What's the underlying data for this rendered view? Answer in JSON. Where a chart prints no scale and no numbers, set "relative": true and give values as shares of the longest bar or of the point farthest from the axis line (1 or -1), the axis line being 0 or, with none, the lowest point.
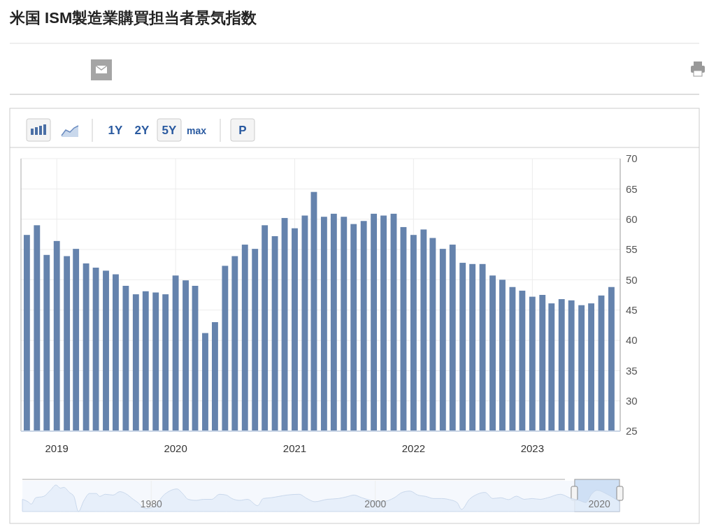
{
  "chart_data": [
    {
      "type": "bar",
      "title": "米国 ISM製造業購買担当者景気指数",
      "annotations": [
        "1Y",
        "2Y",
        "5Y",
        "max",
        "P"
      ],
      "x": [
        "2018-10",
        "2018-11",
        "2018-12",
        "2019-01",
        "2019-02",
        "2019-03",
        "2019-04",
        "2019-05",
        "2019-06",
        "2019-07",
        "2019-08",
        "2019-09",
        "2019-10",
        "2019-11",
        "2019-12",
        "2020-01",
        "2020-02",
        "2020-03",
        "2020-04",
        "2020-05",
        "2020-06",
        "2020-07",
        "2020-08",
        "2020-09",
        "2020-10",
        "2020-11",
        "2020-12",
        "2021-01",
        "2021-02",
        "2021-03",
        "2021-04",
        "2021-05",
        "2021-06",
        "2021-07",
        "2021-08",
        "2021-09",
        "2021-10",
        "2021-11",
        "2021-12",
        "2022-01",
        "2022-02",
        "2022-03",
        "2022-04",
        "2022-05",
        "2022-06",
        "2022-07",
        "2022-08",
        "2022-09",
        "2022-10",
        "2022-11",
        "2022-12",
        "2023-01",
        "2023-02",
        "2023-03",
        "2023-04",
        "2023-05",
        "2023-06",
        "2023-07",
        "2023-08",
        "2023-09"
      ],
      "values": [
        57.4,
        59.0,
        54.1,
        56.4,
        53.9,
        55.1,
        52.7,
        52.0,
        51.5,
        50.9,
        49.0,
        47.6,
        48.1,
        47.9,
        47.6,
        50.7,
        49.9,
        49.0,
        41.2,
        43.0,
        52.3,
        53.9,
        55.8,
        55.1,
        59.0,
        57.2,
        60.2,
        58.5,
        60.6,
        64.5,
        60.4,
        60.9,
        60.4,
        59.2,
        59.7,
        60.9,
        60.6,
        60.9,
        58.7,
        57.4,
        58.3,
        56.9,
        55.1,
        55.8,
        52.8,
        52.6,
        52.6,
        50.7,
        50.0,
        48.8,
        48.2,
        47.2,
        47.5,
        46.1,
        46.8,
        46.6,
        45.8,
        46.1,
        47.4,
        48.8
      ],
      "color": "#6583ad",
      "xlim": [
        "2018-09-13",
        "2023-09-28"
      ],
      "xticks": [
        "2019",
        "2020",
        "2021",
        "2022",
        "2023"
      ],
      "ylim": [
        25,
        70
      ],
      "yticks": [
        25,
        30,
        35,
        40,
        45,
        50,
        55,
        60,
        65,
        70
      ],
      "grid": true
    },
    {
      "type": "area",
      "relative": true,
      "tick_labels": "x",
      "grid": "x",
      "color": "#c9d8ec",
      "bands": [
        {
          "axis": "x",
          "from": 2017.8,
          "to": 2021.8,
          "color": "#cfe0f5"
        }
      ],
      "xlim": [
        1968.5,
        2021.8
      ],
      "xticks": [
        1980,
        2000,
        2020
      ],
      "x": [
        1968.5,
        1969.0,
        1969.3,
        1969.7,
        1970.4,
        1971.0,
        1971.5,
        1971.9,
        1972.2,
        1972.7,
        1973.1,
        1973.5,
        1974.0,
        1974.5,
        1975.1,
        1975.4,
        1975.9,
        1976.6,
        1977.2,
        1977.7,
        1978.4,
        1978.8,
        1979.5,
        1980.2,
        1981.2,
        1982.3,
        1982.8,
        1983.3,
        1984.0,
        1984.7,
        1985.4,
        1986.1,
        1986.7,
        1987.2,
        1987.9,
        1988.6,
        1989.5,
        1990.0,
        1990.7,
        1991.4,
        1992.1,
        1993.2,
        1993.9,
        1994.6,
        1995.7,
        1996.7,
        1997.4,
        1998.1,
        1998.8,
        1999.6,
        2000.6,
        2001.7,
        2002.4,
        2003.1,
        2003.8,
        2004.5,
        2005.2,
        2005.9,
        2006.6,
        2007.3,
        2007.7,
        2008.4,
        2009.1,
        2009.8,
        2010.5,
        2011.2,
        2011.9,
        2012.6,
        2013.3,
        2014.0,
        2014.7,
        2015.4,
        2016.5,
        2017.5,
        2018.2,
        2018.8,
        2019.3,
        2019.8,
        2020.7,
        2021.8
      ],
      "values": [
        0.46,
        0.37,
        0.28,
        0.52,
        0.57,
        0.8,
        1.0,
        0.88,
        0.91,
        0.72,
        0.57,
        0,
        0.42,
        0.68,
        0.68,
        0.57,
        0.65,
        0.62,
        0.75,
        0.68,
        0.46,
        0.34,
        0.11,
        0.18,
        0.65,
        0.85,
        0.68,
        0.46,
        0.42,
        0.46,
        0.46,
        0.65,
        0.62,
        0.49,
        0.42,
        0.46,
        0.22,
        0.49,
        0.52,
        0.57,
        0.62,
        0.65,
        0.49,
        0.37,
        0.46,
        0.49,
        0.55,
        0.62,
        0.52,
        0.42,
        0.37,
        0.52,
        0.72,
        0.77,
        0.62,
        0.57,
        0.49,
        0.49,
        0.45,
        0.34,
        0.08,
        0.46,
        0.65,
        0.72,
        0.49,
        0.52,
        0.45,
        0.58,
        0.46,
        0.49,
        0.46,
        0.52,
        0.65,
        0.49,
        0.42,
        0.34,
        0.65,
        0.8,
        0.65,
        0.37
      ]
    }
  ]
}
